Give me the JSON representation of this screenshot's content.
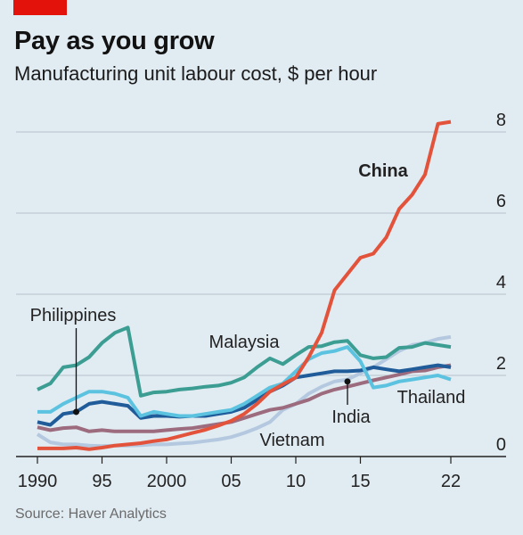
{
  "header": {
    "title": "Pay as you grow",
    "subtitle": "Manufacturing unit labour cost, $ per hour"
  },
  "footer": {
    "source": "Source: Haver Analytics"
  },
  "chart_data": {
    "type": "line",
    "title": "Pay as you grow",
    "subtitle": "Manufacturing unit labour cost, $ per hour",
    "ylim": [
      0,
      8
    ],
    "xlim": [
      1990,
      2022
    ],
    "yticks": [
      0,
      2,
      4,
      6,
      8
    ],
    "xticks": [
      1990,
      1995,
      2000,
      2005,
      2010,
      2015,
      2022
    ],
    "xtick_labels": [
      "1990",
      "95",
      "2000",
      "05",
      "10",
      "15",
      "22"
    ],
    "grid": true,
    "y_axis_position": "right",
    "x": [
      1990,
      1991,
      1992,
      1993,
      1994,
      1995,
      1996,
      1997,
      1998,
      1999,
      2000,
      2001,
      2002,
      2003,
      2004,
      2005,
      2006,
      2007,
      2008,
      2009,
      2010,
      2011,
      2012,
      2013,
      2014,
      2015,
      2016,
      2017,
      2018,
      2019,
      2020,
      2021,
      2022
    ],
    "series": [
      {
        "name": "China",
        "color": "#e3533b",
        "bold_label": true,
        "values": [
          0.2,
          0.2,
          0.2,
          0.22,
          0.18,
          0.22,
          0.27,
          0.3,
          0.33,
          0.38,
          0.42,
          0.5,
          0.58,
          0.66,
          0.76,
          0.88,
          1.05,
          1.3,
          1.6,
          1.78,
          1.95,
          2.45,
          3.05,
          4.1,
          4.5,
          4.9,
          5.0,
          5.4,
          6.1,
          6.45,
          6.95,
          8.2,
          8.25
        ]
      },
      {
        "name": "Malaysia",
        "color": "#3c9d93",
        "values": [
          1.65,
          1.8,
          2.2,
          2.25,
          2.45,
          2.8,
          3.05,
          3.18,
          1.5,
          1.58,
          1.6,
          1.65,
          1.68,
          1.72,
          1.75,
          1.82,
          1.95,
          2.2,
          2.42,
          2.28,
          2.5,
          2.7,
          2.72,
          2.82,
          2.85,
          2.5,
          2.42,
          2.45,
          2.68,
          2.7,
          2.8,
          2.75,
          2.7
        ]
      },
      {
        "name": "Thailand",
        "color": "#5bc3e0",
        "values": [
          1.1,
          1.1,
          1.3,
          1.45,
          1.6,
          1.6,
          1.55,
          1.45,
          1.0,
          1.1,
          1.05,
          1.0,
          1.0,
          1.05,
          1.1,
          1.15,
          1.3,
          1.5,
          1.7,
          1.8,
          2.1,
          2.4,
          2.55,
          2.6,
          2.7,
          2.35,
          1.7,
          1.75,
          1.85,
          1.9,
          1.95,
          2.0,
          1.9
        ]
      },
      {
        "name": "Philippines",
        "color": "#1f5c99",
        "values": [
          0.85,
          0.78,
          1.05,
          1.1,
          1.3,
          1.35,
          1.3,
          1.25,
          0.95,
          1.0,
          1.0,
          0.98,
          1.0,
          1.0,
          1.05,
          1.1,
          1.2,
          1.4,
          1.6,
          1.75,
          1.95,
          2.0,
          2.05,
          2.1,
          2.1,
          2.12,
          2.2,
          2.15,
          2.1,
          2.15,
          2.2,
          2.25,
          2.2
        ]
      },
      {
        "name": "India",
        "color": "#9c6b7d",
        "values": [
          0.72,
          0.65,
          0.7,
          0.72,
          0.62,
          0.65,
          0.62,
          0.62,
          0.62,
          0.62,
          0.65,
          0.68,
          0.7,
          0.75,
          0.8,
          0.85,
          0.95,
          1.05,
          1.15,
          1.2,
          1.3,
          1.4,
          1.55,
          1.65,
          1.72,
          1.8,
          1.88,
          1.95,
          2.02,
          2.1,
          2.12,
          2.2,
          2.25
        ]
      },
      {
        "name": "Vietnam",
        "color": "#b4c9e0",
        "values": [
          0.55,
          0.35,
          0.3,
          0.3,
          0.27,
          0.26,
          0.27,
          0.27,
          0.28,
          0.3,
          0.3,
          0.32,
          0.34,
          0.38,
          0.42,
          0.48,
          0.58,
          0.7,
          0.85,
          1.15,
          1.3,
          1.55,
          1.72,
          1.85,
          1.9,
          2.05,
          2.2,
          2.4,
          2.6,
          2.75,
          2.8,
          2.9,
          2.95
        ]
      }
    ],
    "annotations": [
      {
        "series": "China",
        "text": "China"
      },
      {
        "series": "Malaysia",
        "text": "Malaysia"
      },
      {
        "series": "Thailand",
        "text": "Thailand"
      },
      {
        "series": "India",
        "text": "India"
      },
      {
        "series": "Philippines",
        "text": "Philippines"
      },
      {
        "series": "Vietnam",
        "text": "Vietnam"
      }
    ]
  }
}
